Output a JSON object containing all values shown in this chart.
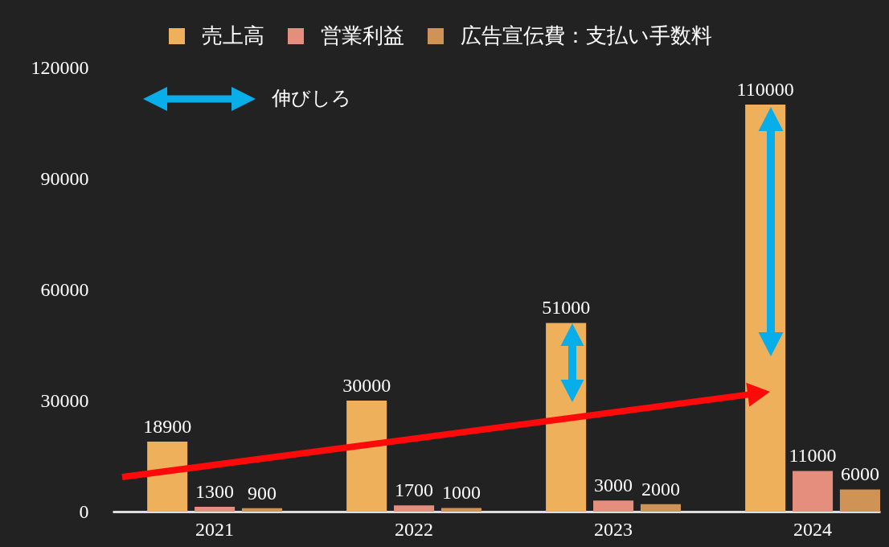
{
  "chart_data": {
    "type": "bar",
    "categories": [
      "2021",
      "2022",
      "2023",
      "2024"
    ],
    "series": [
      {
        "name": "売上高",
        "color": "#eeb05a",
        "values": [
          18900,
          30000,
          51000,
          110000
        ]
      },
      {
        "name": "営業利益",
        "color": "#e58e7e",
        "values": [
          1300,
          1700,
          3000,
          11000
        ]
      },
      {
        "name": "広告宣伝費：支払い手数料",
        "color": "#cf9355",
        "values": [
          900,
          1000,
          2000,
          6000
        ]
      }
    ],
    "ylim": [
      0,
      120000
    ],
    "yticks": [
      0,
      30000,
      60000,
      90000,
      120000
    ],
    "legend": "top",
    "data_labels": true,
    "annotations": [
      "伸びしろ"
    ]
  }
}
